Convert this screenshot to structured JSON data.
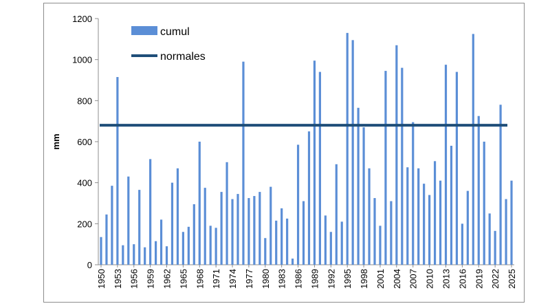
{
  "chart_data": {
    "type": "bar",
    "ylabel": "mm",
    "ylim": [
      0,
      1200
    ],
    "yticks": [
      0,
      200,
      400,
      600,
      800,
      1000,
      1200
    ],
    "x": [
      1950,
      1951,
      1952,
      1953,
      1954,
      1955,
      1956,
      1957,
      1958,
      1959,
      1960,
      1961,
      1962,
      1963,
      1964,
      1965,
      1966,
      1967,
      1968,
      1969,
      1970,
      1971,
      1972,
      1973,
      1974,
      1975,
      1976,
      1977,
      1978,
      1979,
      1980,
      1981,
      1982,
      1983,
      1984,
      1985,
      1986,
      1987,
      1988,
      1989,
      1990,
      1991,
      1992,
      1993,
      1994,
      1995,
      1996,
      1997,
      1998,
      1999,
      2000,
      2001,
      2002,
      2003,
      2004,
      2005,
      2006,
      2007,
      2008,
      2009,
      2010,
      2011,
      2012,
      2013,
      2014,
      2015,
      2016,
      2017,
      2018,
      2019,
      2020,
      2021,
      2022,
      2023,
      2024,
      2025
    ],
    "xtick_labels": [
      "1950",
      "1953",
      "1956",
      "1959",
      "1962",
      "1965",
      "1968",
      "1971",
      "1974",
      "1977",
      "1980",
      "1983",
      "1986",
      "1989",
      "1992",
      "1995",
      "1998",
      "2001",
      "2004",
      "2007",
      "2010",
      "2013",
      "2016",
      "2019",
      "2022",
      "2025"
    ],
    "series": [
      {
        "name": "cumul",
        "color": "#5b8ed6",
        "values": [
          135,
          245,
          385,
          915,
          95,
          430,
          100,
          365,
          85,
          515,
          115,
          220,
          90,
          400,
          470,
          160,
          185,
          295,
          600,
          375,
          190,
          180,
          355,
          500,
          320,
          345,
          990,
          325,
          335,
          355,
          130,
          380,
          215,
          275,
          225,
          30,
          585,
          310,
          650,
          995,
          940,
          240,
          160,
          490,
          210,
          1130,
          1095,
          765,
          670,
          470,
          325,
          190,
          945,
          310,
          1070,
          960,
          475,
          695,
          470,
          395,
          340,
          505,
          410,
          975,
          580,
          940,
          200,
          360,
          1125,
          725,
          600,
          250,
          165,
          780,
          320,
          410
        ]
      },
      {
        "name": "normales",
        "color": "#1f4e79",
        "value": 680
      }
    ],
    "grid": false,
    "legend": "top-left"
  }
}
